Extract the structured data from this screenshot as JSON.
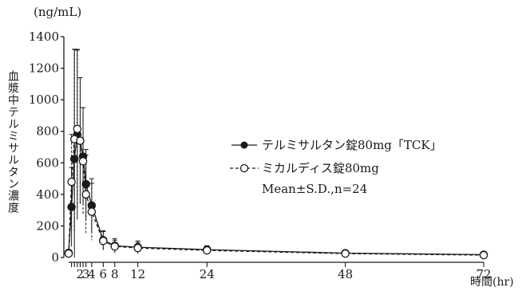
{
  "chart_data": {
    "type": "line",
    "ylabel": "血漿中テルミサルタン濃度",
    "yunit": "(ng/mL)",
    "xunit": "時間(hr)",
    "ylim": [
      0,
      1400
    ],
    "yticks": [
      0,
      200,
      400,
      600,
      800,
      1000,
      1200,
      1400
    ],
    "xlim": [
      0,
      72
    ],
    "xticks_labeled": [
      2,
      3,
      4,
      6,
      8,
      12,
      24,
      48,
      72
    ],
    "xticks_minor": [
      0.5,
      1,
      1.5,
      2.5
    ],
    "legend_note": "Mean±S.D.,n=24",
    "series": [
      {
        "name": "テルミサルタン錠80mg「TCK」",
        "style": "solid",
        "marker": "filled-circle",
        "color": "#1a1a1a",
        "x": [
          0,
          0.5,
          1,
          1.5,
          2,
          2.5,
          3,
          4,
          6,
          8,
          12,
          24,
          48,
          72
        ],
        "y": [
          30,
          320,
          625,
          780,
          740,
          640,
          465,
          330,
          110,
          75,
          65,
          50,
          28,
          18
        ],
        "sd": [
          0,
          250,
          700,
          540,
          400,
          310,
          220,
          170,
          60,
          45,
          40,
          25,
          20,
          15
        ]
      },
      {
        "name": "ミカルディス錠80mg",
        "style": "dashed",
        "marker": "open-circle",
        "color": "#1a1a1a",
        "x": [
          0,
          0.5,
          1,
          1.5,
          2,
          2.5,
          3,
          4,
          6,
          8,
          12,
          24,
          48,
          72
        ],
        "y": [
          25,
          480,
          750,
          815,
          740,
          610,
          400,
          290,
          105,
          70,
          60,
          45,
          25,
          15
        ],
        "sd": [
          0,
          300,
          580,
          500,
          400,
          340,
          250,
          180,
          60,
          40,
          35,
          25,
          18,
          12
        ]
      }
    ]
  }
}
